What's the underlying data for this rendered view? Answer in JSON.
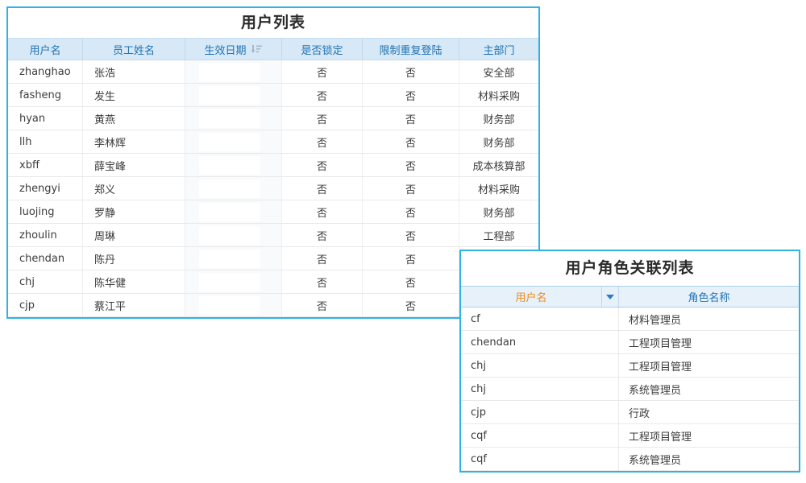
{
  "colors": {
    "accent_border": "#2fb3e6",
    "user_table_header_bg": "#d7e8f6",
    "role_table_header_bg": "#e6f1fa",
    "header_text_blue": "#2173b4",
    "filter_header_text_orange": "#ee8a1b",
    "caret_blue": "#2a7cc9",
    "sort_icon_gray": "#a3b9cd"
  },
  "user_table": {
    "title": "用户列表",
    "columns": [
      {
        "label": "用户名"
      },
      {
        "label": "员工姓名"
      },
      {
        "label": "生效日期",
        "sortable": true
      },
      {
        "label": "是否锁定"
      },
      {
        "label": "限制重复登陆"
      },
      {
        "label": "主部门"
      }
    ],
    "rows": [
      {
        "username": "zhanghao",
        "name": "张浩",
        "effective_date": "",
        "locked": "否",
        "restrict": "否",
        "dept": "安全部"
      },
      {
        "username": "fasheng",
        "name": "发生",
        "effective_date": "",
        "locked": "否",
        "restrict": "否",
        "dept": "材料采购"
      },
      {
        "username": "hyan",
        "name": "黄燕",
        "effective_date": "",
        "locked": "否",
        "restrict": "否",
        "dept": "财务部"
      },
      {
        "username": "llh",
        "name": "李林辉",
        "effective_date": "",
        "locked": "否",
        "restrict": "否",
        "dept": "财务部"
      },
      {
        "username": "xbff",
        "name": "薛宝峰",
        "effective_date": "",
        "locked": "否",
        "restrict": "否",
        "dept": "成本核算部"
      },
      {
        "username": "zhengyi",
        "name": "郑义",
        "effective_date": "",
        "locked": "否",
        "restrict": "否",
        "dept": "材料采购"
      },
      {
        "username": "luojing",
        "name": "罗静",
        "effective_date": "",
        "locked": "否",
        "restrict": "否",
        "dept": "财务部"
      },
      {
        "username": "zhoulin",
        "name": "周琳",
        "effective_date": "",
        "locked": "否",
        "restrict": "否",
        "dept": "工程部"
      },
      {
        "username": "chendan",
        "name": "陈丹",
        "effective_date": "",
        "locked": "否",
        "restrict": "否",
        "dept": ""
      },
      {
        "username": "chj",
        "name": "陈华健",
        "effective_date": "",
        "locked": "否",
        "restrict": "否",
        "dept": ""
      },
      {
        "username": "cjp",
        "name": "蔡江平",
        "effective_date": "",
        "locked": "否",
        "restrict": "否",
        "dept": ""
      }
    ]
  },
  "role_table": {
    "title": "用户角色关联列表",
    "columns": [
      {
        "label": "用户名",
        "filterable": true
      },
      {
        "label": "角色名称"
      }
    ],
    "rows": [
      {
        "username": "cf",
        "role": "材料管理员"
      },
      {
        "username": "chendan",
        "role": "工程项目管理"
      },
      {
        "username": "chj",
        "role": "工程项目管理"
      },
      {
        "username": "chj",
        "role": "系统管理员"
      },
      {
        "username": "cjp",
        "role": "行政"
      },
      {
        "username": "cqf",
        "role": "工程项目管理"
      },
      {
        "username": "cqf",
        "role": "系统管理员"
      }
    ]
  }
}
